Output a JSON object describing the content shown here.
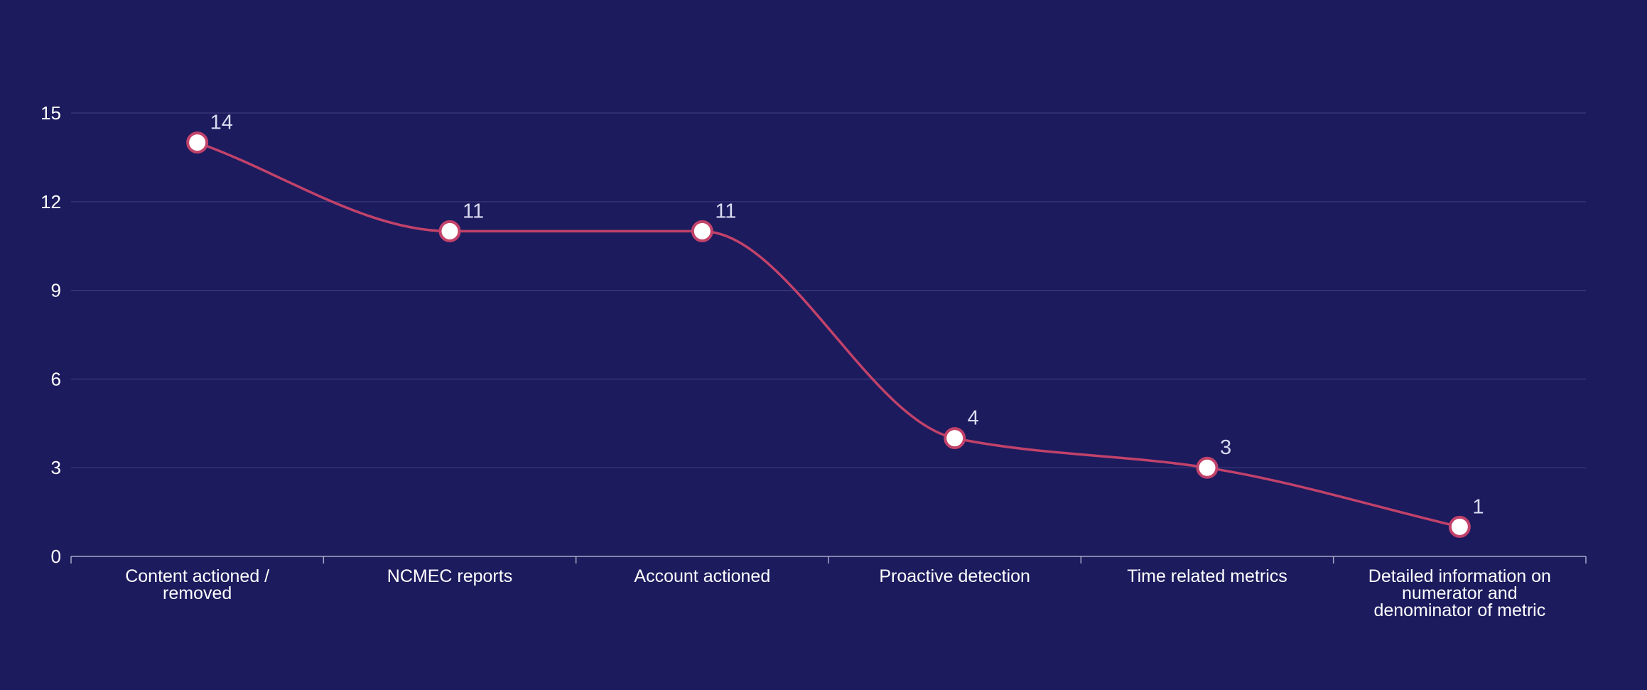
{
  "chart_data": {
    "type": "line",
    "categories": [
      "Content actioned / removed",
      "NCMEC reports",
      "Account actioned",
      "Proactive detection",
      "Time related metrics",
      "Detailed information on numerator and denominator of metric"
    ],
    "category_lines": [
      [
        "Content actioned /",
        "removed"
      ],
      [
        "NCMEC reports"
      ],
      [
        "Account actioned"
      ],
      [
        "Proactive detection"
      ],
      [
        "Time related metrics"
      ],
      [
        "Detailed information on",
        "numerator and",
        "denominator of metric"
      ]
    ],
    "values": [
      14,
      11,
      11,
      4,
      3,
      1
    ],
    "data_labels": [
      "14",
      "11",
      "11",
      "4",
      "3",
      "1"
    ],
    "yticks": [
      0,
      3,
      6,
      9,
      12,
      15
    ],
    "ytick_labels": [
      "0",
      "3",
      "6",
      "9",
      "12",
      "15"
    ],
    "ylim": [
      0,
      15
    ],
    "title": "",
    "xlabel": "",
    "ylabel": "",
    "grid": true,
    "smooth": true,
    "colors": {
      "background": "#1c1b5e",
      "line": "#c2426a",
      "marker_fill": "#ffffff",
      "marker_stroke": "#c2426a",
      "grid": "#3a3a7c",
      "axis": "#a9abc9",
      "tick_text": "#ffffff",
      "data_label_text": "#d9dbf0"
    }
  }
}
